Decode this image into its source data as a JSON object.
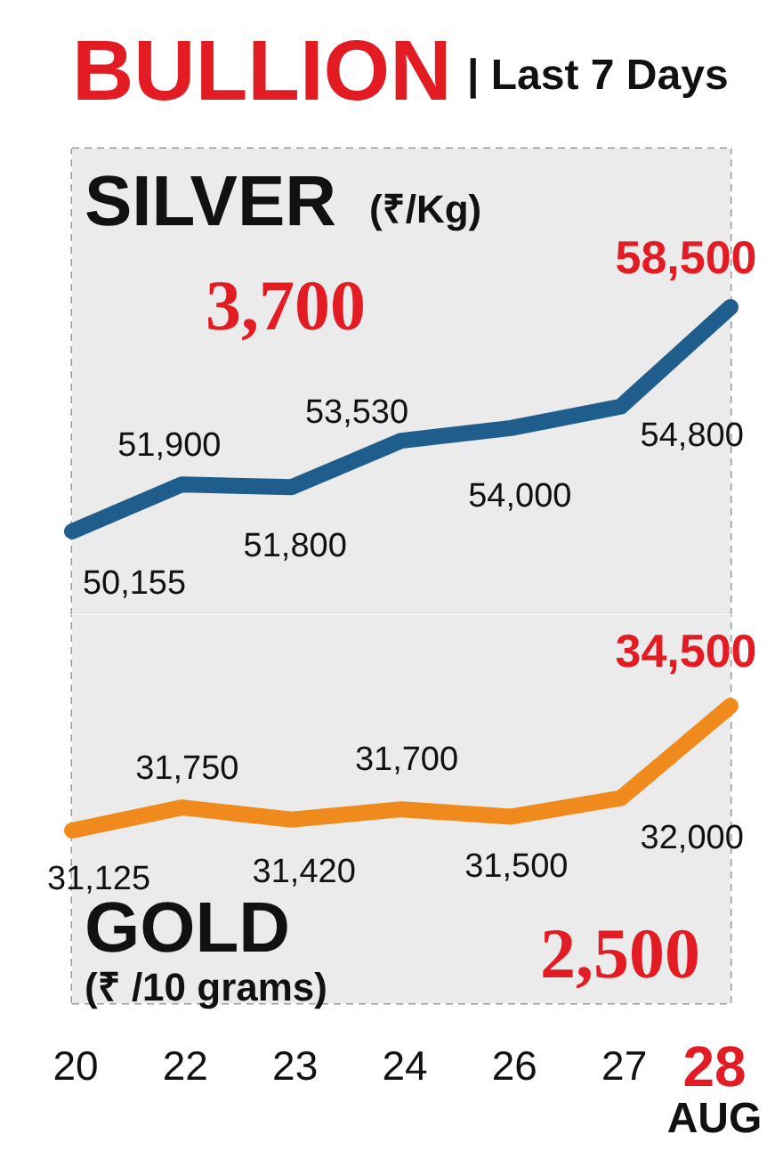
{
  "chart_data": [
    {
      "type": "line",
      "title": "BULLION",
      "subtitle": "| Last 7 Days",
      "categories": [
        "20",
        "22",
        "23",
        "24",
        "26",
        "27",
        "28"
      ],
      "series": [
        {
          "name": "SILVER (₹/Kg)",
          "color": "#1e5d8c",
          "values": [
            50155,
            51900,
            51800,
            53530,
            54000,
            54800,
            58500
          ],
          "value_labels": [
            "50,155",
            "51,900",
            "51,800",
            "53,530",
            "54,000",
            "54,800",
            "58,500"
          ]
        }
      ],
      "annotations": [
        "3,700"
      ],
      "grid": true,
      "legend": false,
      "tick_labels": false,
      "marker": "none",
      "line_style": "solid"
    },
    {
      "type": "line",
      "categories": [
        "20",
        "22",
        "23",
        "24",
        "26",
        "27",
        "28"
      ],
      "series": [
        {
          "name": "GOLD (₹ /10 grams)",
          "color": "#f08a1c",
          "values": [
            31125,
            31750,
            31420,
            31700,
            31500,
            32000,
            34500
          ],
          "value_labels": [
            "31,125",
            "31,750",
            "31,420",
            "31,700",
            "31,500",
            "32,000",
            "34,500"
          ]
        }
      ],
      "annotations": [
        "2,500",
        "AUG"
      ],
      "grid": true,
      "legend": false,
      "tick_labels": "x",
      "marker": "none",
      "line_style": "solid"
    }
  ]
}
